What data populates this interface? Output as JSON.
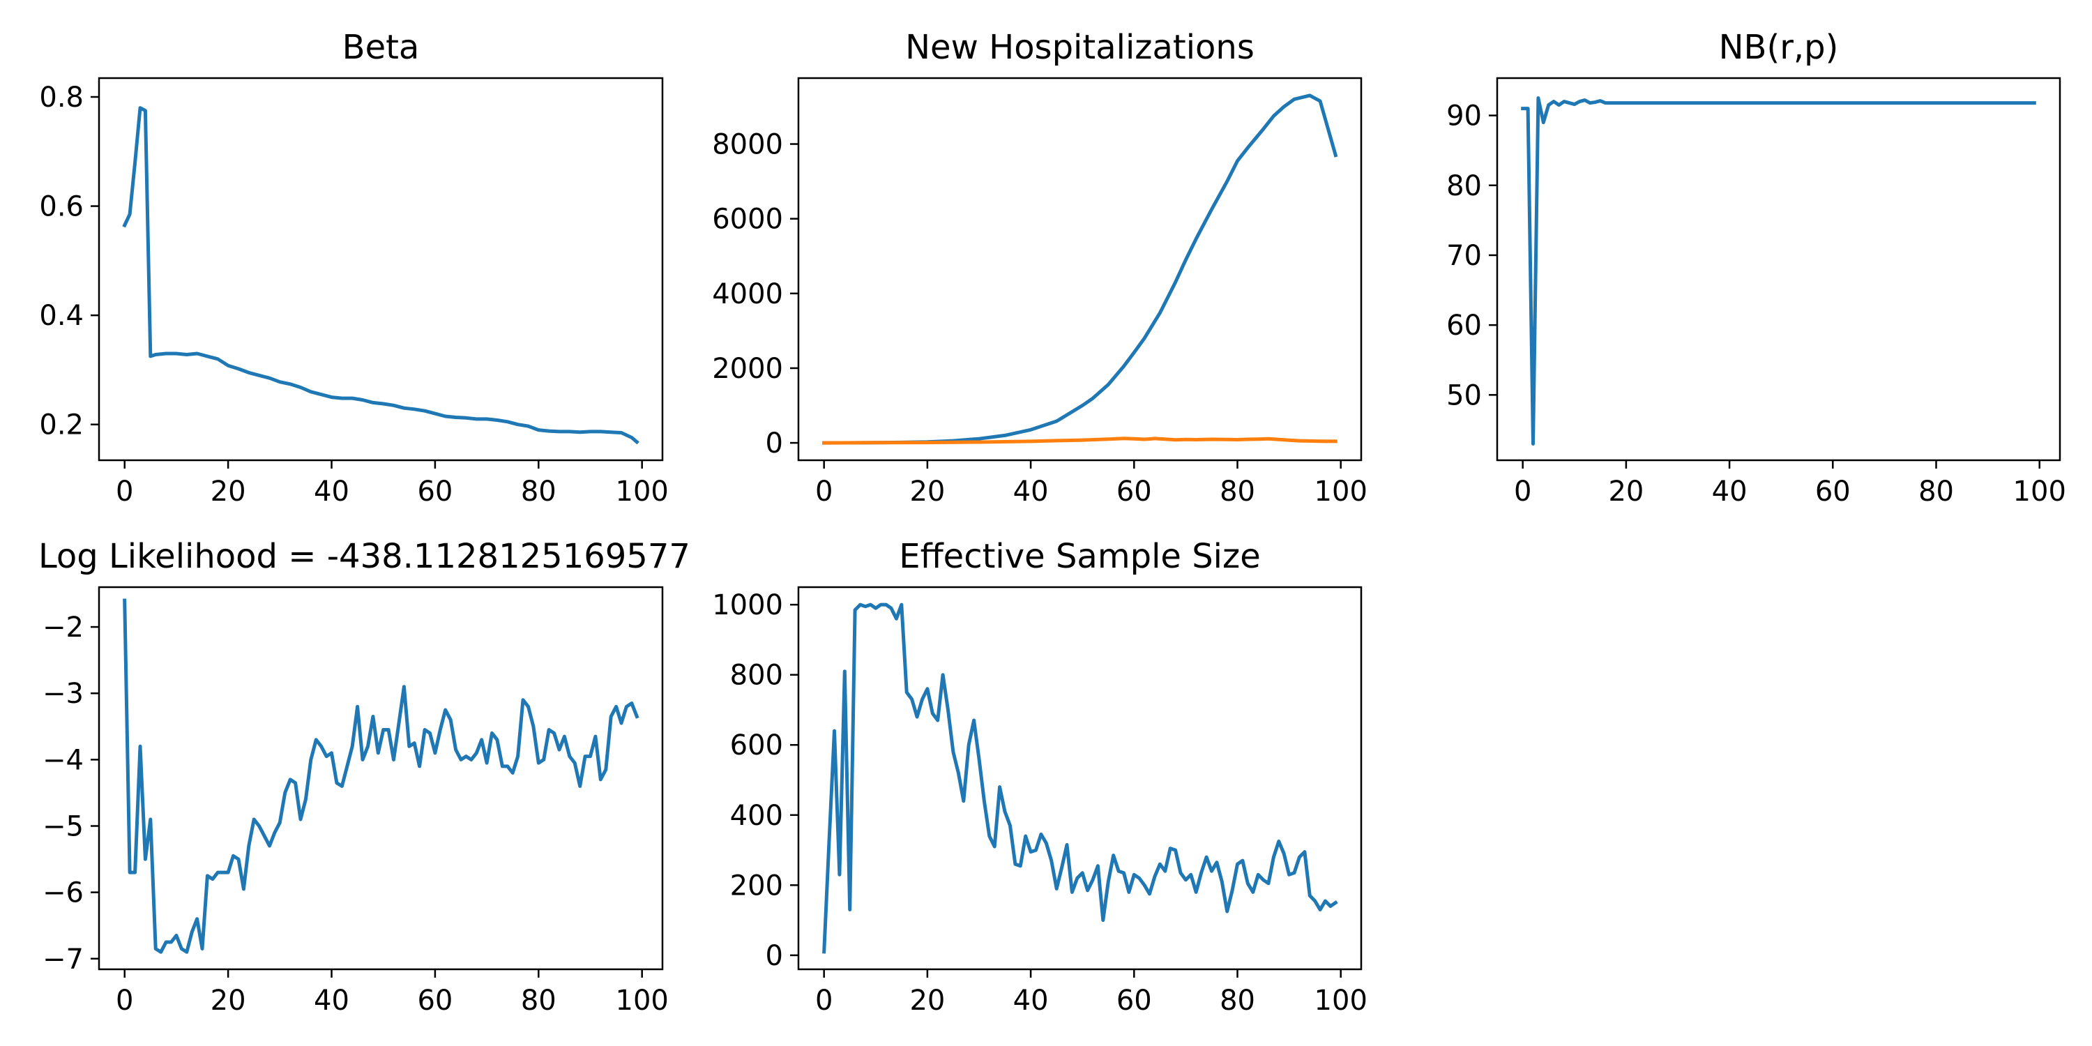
{
  "figure": {
    "background": "#ffffff"
  },
  "chart_data": [
    {
      "type": "line",
      "title": "Beta",
      "xlim": [
        -4.95,
        103.95
      ],
      "ylim": [
        0.1345,
        0.8345
      ],
      "xticks": [
        0,
        20,
        40,
        60,
        80,
        100
      ],
      "yticks": [
        0.2,
        0.4,
        0.6,
        0.8
      ],
      "ytick_labels": [
        "0.2",
        "0.4",
        "0.6",
        "0.8"
      ],
      "series": [
        {
          "color": "#1f77b4",
          "x": [
            0,
            1,
            2,
            3,
            4,
            5,
            6,
            8,
            10,
            12,
            14,
            16,
            18,
            20,
            22,
            24,
            26,
            28,
            30,
            32,
            34,
            36,
            38,
            40,
            42,
            44,
            46,
            48,
            50,
            52,
            54,
            56,
            58,
            60,
            62,
            64,
            66,
            68,
            70,
            72,
            74,
            76,
            78,
            80,
            82,
            84,
            86,
            88,
            90,
            92,
            94,
            96,
            98,
            99
          ],
          "y": [
            0.565,
            0.585,
            0.68,
            0.78,
            0.775,
            0.325,
            0.328,
            0.33,
            0.33,
            0.328,
            0.33,
            0.325,
            0.32,
            0.308,
            0.302,
            0.295,
            0.29,
            0.285,
            0.278,
            0.274,
            0.268,
            0.26,
            0.255,
            0.25,
            0.248,
            0.248,
            0.245,
            0.24,
            0.238,
            0.235,
            0.23,
            0.228,
            0.225,
            0.22,
            0.215,
            0.213,
            0.212,
            0.21,
            0.21,
            0.208,
            0.205,
            0.2,
            0.197,
            0.19,
            0.188,
            0.187,
            0.187,
            0.186,
            0.187,
            0.187,
            0.186,
            0.185,
            0.176,
            0.168
          ]
        }
      ]
    },
    {
      "type": "line",
      "title": "New Hospitalizations",
      "xlim": [
        -4.95,
        103.95
      ],
      "ylim": [
        -465,
        9765
      ],
      "xticks": [
        0,
        20,
        40,
        60,
        80,
        100
      ],
      "yticks": [
        0,
        2000,
        4000,
        6000,
        8000
      ],
      "ytick_labels": [
        "0",
        "2000",
        "4000",
        "6000",
        "8000"
      ],
      "series": [
        {
          "color": "#1f77b4",
          "x": [
            0,
            5,
            10,
            15,
            20,
            25,
            30,
            35,
            40,
            45,
            50,
            52,
            55,
            58,
            60,
            62,
            65,
            68,
            70,
            72,
            75,
            78,
            80,
            82,
            85,
            87,
            89,
            91,
            94,
            96,
            99
          ],
          "y": [
            0,
            2,
            5,
            12,
            25,
            55,
            110,
            200,
            350,
            580,
            1000,
            1190,
            1560,
            2050,
            2420,
            2800,
            3480,
            4300,
            4900,
            5460,
            6250,
            7000,
            7550,
            7900,
            8400,
            8750,
            9000,
            9200,
            9300,
            9150,
            7700
          ]
        },
        {
          "color": "#ff7f0e",
          "x": [
            0,
            10,
            20,
            30,
            40,
            45,
            50,
            55,
            58,
            60,
            62,
            64,
            66,
            68,
            70,
            72,
            75,
            78,
            80,
            82,
            84,
            86,
            88,
            90,
            92,
            94,
            96,
            99
          ],
          "y": [
            0,
            5,
            10,
            20,
            40,
            60,
            75,
            100,
            120,
            110,
            95,
            115,
            100,
            80,
            90,
            85,
            95,
            90,
            85,
            95,
            100,
            110,
            90,
            70,
            55,
            50,
            45,
            40
          ]
        }
      ]
    },
    {
      "type": "line",
      "title": "NB(r,p)",
      "xlim": [
        -4.95,
        103.95
      ],
      "ylim": [
        40.65,
        95.35
      ],
      "xticks": [
        0,
        20,
        40,
        60,
        80,
        100
      ],
      "yticks": [
        50,
        60,
        70,
        80,
        90
      ],
      "ytick_labels": [
        "50",
        "60",
        "70",
        "80",
        "90"
      ],
      "series": [
        {
          "color": "#1f77b4",
          "x": [
            0,
            1,
            2,
            3,
            4,
            5,
            6,
            7,
            8,
            9,
            10,
            11,
            12,
            13,
            14,
            15,
            16,
            17,
            18,
            20,
            30,
            40,
            50,
            60,
            70,
            80,
            90,
            99
          ],
          "y": [
            91,
            91,
            43,
            92.5,
            89,
            91.5,
            92,
            91.5,
            92,
            91.8,
            91.6,
            92,
            92.2,
            91.8,
            91.9,
            92.1,
            91.8,
            91.8,
            91.8,
            91.8,
            91.8,
            91.8,
            91.8,
            91.8,
            91.8,
            91.8,
            91.8,
            91.8
          ]
        }
      ]
    },
    {
      "type": "line",
      "title": "Log Likelihood = -438.1128125169577",
      "xlim": [
        -4.95,
        103.95
      ],
      "ylim": [
        -7.16,
        -1.4
      ],
      "xticks": [
        0,
        20,
        40,
        60,
        80,
        100
      ],
      "yticks": [
        -7,
        -6,
        -5,
        -4,
        -3,
        -2
      ],
      "ytick_labels": [
        "−7",
        "−6",
        "−5",
        "−4",
        "−3",
        "−2"
      ],
      "series": [
        {
          "color": "#1f77b4",
          "x": [
            0,
            1,
            2,
            3,
            4,
            5,
            6,
            7,
            8,
            9,
            10,
            11,
            12,
            13,
            14,
            15,
            16,
            17,
            18,
            19,
            20,
            21,
            22,
            23,
            24,
            25,
            26,
            27,
            28,
            29,
            30,
            31,
            32,
            33,
            34,
            35,
            36,
            37,
            38,
            39,
            40,
            41,
            42,
            43,
            44,
            45,
            46,
            47,
            48,
            49,
            50,
            51,
            52,
            53,
            54,
            55,
            56,
            57,
            58,
            59,
            60,
            61,
            62,
            63,
            64,
            65,
            66,
            67,
            68,
            69,
            70,
            71,
            72,
            73,
            74,
            75,
            76,
            77,
            78,
            79,
            80,
            81,
            82,
            83,
            84,
            85,
            86,
            87,
            88,
            89,
            90,
            91,
            92,
            93,
            94,
            95,
            96,
            97,
            98,
            99
          ],
          "y": [
            -1.6,
            -5.7,
            -5.7,
            -3.8,
            -5.5,
            -4.9,
            -6.85,
            -6.9,
            -6.75,
            -6.75,
            -6.65,
            -6.85,
            -6.9,
            -6.6,
            -6.4,
            -6.85,
            -5.75,
            -5.8,
            -5.7,
            -5.7,
            -5.7,
            -5.45,
            -5.5,
            -5.95,
            -5.3,
            -4.9,
            -5.0,
            -5.15,
            -5.3,
            -5.1,
            -4.95,
            -4.5,
            -4.3,
            -4.35,
            -4.9,
            -4.6,
            -4.0,
            -3.7,
            -3.8,
            -3.95,
            -3.9,
            -4.35,
            -4.4,
            -4.1,
            -3.8,
            -3.2,
            -4.0,
            -3.8,
            -3.35,
            -3.9,
            -3.55,
            -3.55,
            -4.0,
            -3.45,
            -2.9,
            -3.8,
            -3.75,
            -4.1,
            -3.55,
            -3.6,
            -3.9,
            -3.55,
            -3.25,
            -3.4,
            -3.85,
            -4.0,
            -3.95,
            -4.0,
            -3.9,
            -3.7,
            -4.05,
            -3.6,
            -3.7,
            -4.1,
            -4.1,
            -4.2,
            -3.95,
            -3.1,
            -3.2,
            -3.5,
            -4.05,
            -4.0,
            -3.55,
            -3.6,
            -3.85,
            -3.65,
            -3.95,
            -4.05,
            -4.4,
            -3.95,
            -3.95,
            -3.65,
            -4.3,
            -4.15,
            -3.35,
            -3.2,
            -3.45,
            -3.2,
            -3.15,
            -3.35
          ]
        }
      ]
    },
    {
      "type": "line",
      "title": "Effective Sample Size",
      "xlim": [
        -4.95,
        103.95
      ],
      "ylim": [
        -40,
        1050
      ],
      "xticks": [
        0,
        20,
        40,
        60,
        80,
        100
      ],
      "yticks": [
        0,
        200,
        400,
        600,
        800,
        1000
      ],
      "ytick_labels": [
        "0",
        "200",
        "400",
        "600",
        "800",
        "1000"
      ],
      "series": [
        {
          "color": "#1f77b4",
          "x": [
            0,
            1,
            2,
            3,
            4,
            5,
            6,
            7,
            8,
            9,
            10,
            11,
            12,
            13,
            14,
            15,
            16,
            17,
            18,
            19,
            20,
            21,
            22,
            23,
            24,
            25,
            26,
            27,
            28,
            29,
            30,
            31,
            32,
            33,
            34,
            35,
            36,
            37,
            38,
            39,
            40,
            41,
            42,
            43,
            44,
            45,
            46,
            47,
            48,
            49,
            50,
            51,
            52,
            53,
            54,
            55,
            56,
            57,
            58,
            59,
            60,
            61,
            62,
            63,
            64,
            65,
            66,
            67,
            68,
            69,
            70,
            71,
            72,
            73,
            74,
            75,
            76,
            77,
            78,
            79,
            80,
            81,
            82,
            83,
            84,
            85,
            86,
            87,
            88,
            89,
            90,
            91,
            92,
            93,
            94,
            95,
            96,
            97,
            98,
            99
          ],
          "y": [
            10,
            330,
            640,
            230,
            810,
            130,
            985,
            1000,
            995,
            1000,
            990,
            1000,
            1000,
            990,
            960,
            1000,
            750,
            730,
            680,
            730,
            760,
            690,
            670,
            800,
            700,
            580,
            520,
            440,
            600,
            670,
            560,
            440,
            340,
            310,
            480,
            410,
            370,
            260,
            255,
            340,
            295,
            300,
            345,
            320,
            270,
            190,
            250,
            315,
            180,
            220,
            235,
            185,
            215,
            255,
            100,
            210,
            285,
            240,
            235,
            180,
            230,
            220,
            200,
            175,
            225,
            260,
            240,
            305,
            300,
            235,
            215,
            230,
            180,
            235,
            280,
            240,
            265,
            210,
            125,
            185,
            260,
            270,
            205,
            180,
            230,
            215,
            205,
            280,
            325,
            290,
            230,
            235,
            280,
            295,
            170,
            155,
            130,
            155,
            140,
            150
          ]
        }
      ]
    }
  ]
}
